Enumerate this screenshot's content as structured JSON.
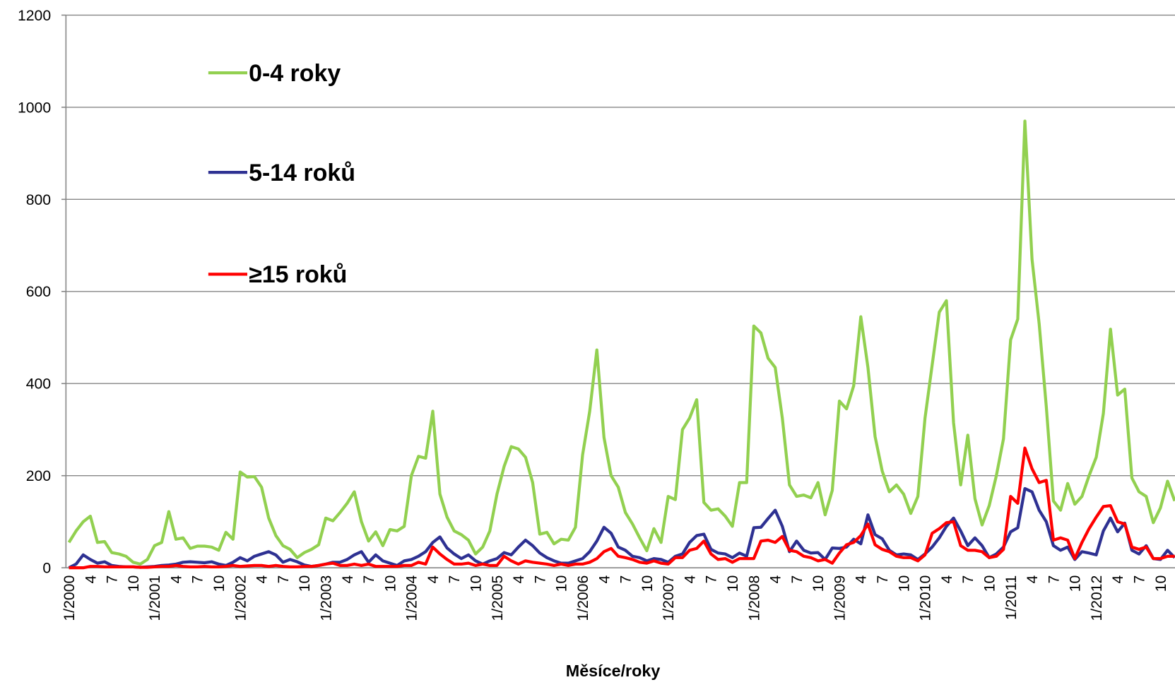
{
  "chart_data": {
    "type": "line",
    "x_label": "Měsíce/roky",
    "categories": [
      "1/2000",
      null,
      null,
      "4",
      null,
      null,
      "7",
      null,
      null,
      "10",
      null,
      null,
      "1/2001",
      null,
      null,
      "4",
      null,
      null,
      "7",
      null,
      null,
      "10",
      null,
      null,
      "1/2002",
      null,
      null,
      "4",
      null,
      null,
      "7",
      null,
      null,
      "10",
      null,
      null,
      "1/2003",
      null,
      null,
      "4",
      null,
      null,
      "7",
      null,
      null,
      "10",
      null,
      null,
      "1/2004",
      null,
      null,
      "4",
      null,
      null,
      "7",
      null,
      null,
      "10",
      null,
      null,
      "1/2005",
      null,
      null,
      "4",
      null,
      null,
      "7",
      null,
      null,
      "10",
      null,
      null,
      "1/2006",
      null,
      null,
      "4",
      null,
      null,
      "7",
      null,
      null,
      "10",
      null,
      null,
      "1/2007",
      null,
      null,
      "4",
      null,
      null,
      "7",
      null,
      null,
      "10",
      null,
      null,
      "1/2008",
      null,
      null,
      "4",
      null,
      null,
      "7",
      null,
      null,
      "10",
      null,
      null,
      "1/2009",
      null,
      null,
      "4",
      null,
      null,
      "7",
      null,
      null,
      "10",
      null,
      null,
      "1/2010",
      null,
      null,
      "4",
      null,
      null,
      "7",
      null,
      null,
      "10",
      null,
      null,
      "1/2011",
      null,
      null,
      "4",
      null,
      null,
      "7",
      null,
      null,
      "10",
      null,
      null,
      "1/2012",
      null,
      null,
      "4",
      null,
      null,
      "7",
      null,
      null,
      "10",
      null,
      null
    ],
    "series": [
      {
        "name": "0-4 roky",
        "color": "#92d050",
        "values": [
          55,
          80,
          100,
          112,
          55,
          57,
          33,
          30,
          25,
          12,
          8,
          18,
          48,
          55,
          122,
          62,
          65,
          42,
          47,
          47,
          45,
          38,
          77,
          62,
          208,
          197,
          198,
          175,
          108,
          70,
          48,
          40,
          22,
          33,
          40,
          50,
          108,
          102,
          120,
          140,
          165,
          100,
          58,
          78,
          48,
          83,
          80,
          90,
          200,
          242,
          238,
          340,
          160,
          110,
          80,
          72,
          60,
          30,
          45,
          80,
          160,
          220,
          263,
          258,
          240,
          185,
          73,
          77,
          52,
          62,
          60,
          88,
          245,
          340,
          473,
          283,
          200,
          175,
          120,
          95,
          65,
          37,
          85,
          55,
          155,
          148,
          300,
          325,
          365,
          142,
          125,
          128,
          112,
          90,
          185,
          185,
          525,
          510,
          455,
          435,
          325,
          180,
          155,
          158,
          152,
          185,
          115,
          168,
          362,
          345,
          395,
          545,
          435,
          285,
          210,
          165,
          180,
          160,
          118,
          155,
          325,
          440,
          555,
          580,
          315,
          180,
          288,
          150,
          93,
          135,
          200,
          280,
          495,
          540,
          970,
          670,
          530,
          350,
          145,
          125,
          183,
          138,
          155,
          200,
          240,
          335,
          518,
          375,
          388,
          195,
          165,
          155,
          98,
          130,
          188,
          145
        ]
      },
      {
        "name": "5-14 roků",
        "color": "#2e3192",
        "values": [
          0,
          8,
          28,
          18,
          10,
          13,
          5,
          3,
          2,
          2,
          1,
          2,
          3,
          5,
          6,
          8,
          12,
          13,
          12,
          11,
          13,
          8,
          5,
          12,
          22,
          15,
          25,
          30,
          35,
          28,
          12,
          18,
          13,
          6,
          3,
          5,
          8,
          12,
          12,
          18,
          28,
          35,
          12,
          28,
          15,
          10,
          5,
          15,
          18,
          25,
          35,
          55,
          67,
          43,
          30,
          20,
          28,
          15,
          8,
          15,
          20,
          33,
          28,
          45,
          60,
          48,
          32,
          22,
          15,
          10,
          10,
          15,
          20,
          35,
          58,
          88,
          75,
          45,
          38,
          25,
          22,
          15,
          20,
          18,
          12,
          25,
          30,
          55,
          70,
          73,
          40,
          32,
          30,
          22,
          32,
          25,
          87,
          88,
          107,
          125,
          90,
          35,
          58,
          38,
          32,
          33,
          18,
          43,
          42,
          45,
          62,
          52,
          115,
          72,
          63,
          38,
          28,
          30,
          28,
          18,
          30,
          45,
          65,
          90,
          108,
          80,
          48,
          65,
          48,
          22,
          30,
          45,
          78,
          87,
          172,
          165,
          125,
          100,
          48,
          38,
          45,
          18,
          35,
          32,
          28,
          80,
          108,
          78,
          97,
          38,
          30,
          48,
          20,
          18,
          38,
          22
        ]
      },
      {
        "name": "≥15 roků",
        "color": "#ff0000",
        "values": [
          0,
          0,
          0,
          3,
          3,
          2,
          2,
          2,
          2,
          2,
          1,
          1,
          2,
          3,
          3,
          5,
          3,
          2,
          2,
          3,
          2,
          2,
          3,
          5,
          3,
          4,
          5,
          5,
          3,
          5,
          3,
          2,
          2,
          3,
          3,
          5,
          8,
          10,
          5,
          5,
          8,
          5,
          8,
          3,
          3,
          3,
          3,
          5,
          5,
          12,
          8,
          45,
          30,
          18,
          8,
          8,
          10,
          5,
          8,
          5,
          5,
          25,
          15,
          8,
          15,
          12,
          10,
          8,
          5,
          8,
          5,
          8,
          8,
          12,
          20,
          35,
          42,
          25,
          22,
          18,
          12,
          10,
          15,
          10,
          8,
          22,
          22,
          38,
          42,
          58,
          30,
          18,
          20,
          12,
          20,
          20,
          20,
          58,
          60,
          55,
          68,
          38,
          35,
          25,
          22,
          15,
          18,
          10,
          32,
          50,
          55,
          70,
          95,
          50,
          40,
          35,
          25,
          22,
          22,
          15,
          28,
          75,
          85,
          98,
          100,
          48,
          38,
          38,
          35,
          22,
          25,
          40,
          155,
          140,
          260,
          215,
          185,
          190,
          60,
          65,
          60,
          20,
          55,
          85,
          110,
          133,
          135,
          100,
          95,
          45,
          40,
          45,
          20,
          20,
          25,
          25
        ]
      }
    ],
    "ylim": [
      0,
      1200
    ],
    "yticks": [
      0,
      200,
      400,
      600,
      800,
      1000,
      1200
    ],
    "grid": true,
    "legend": "upper left"
  }
}
